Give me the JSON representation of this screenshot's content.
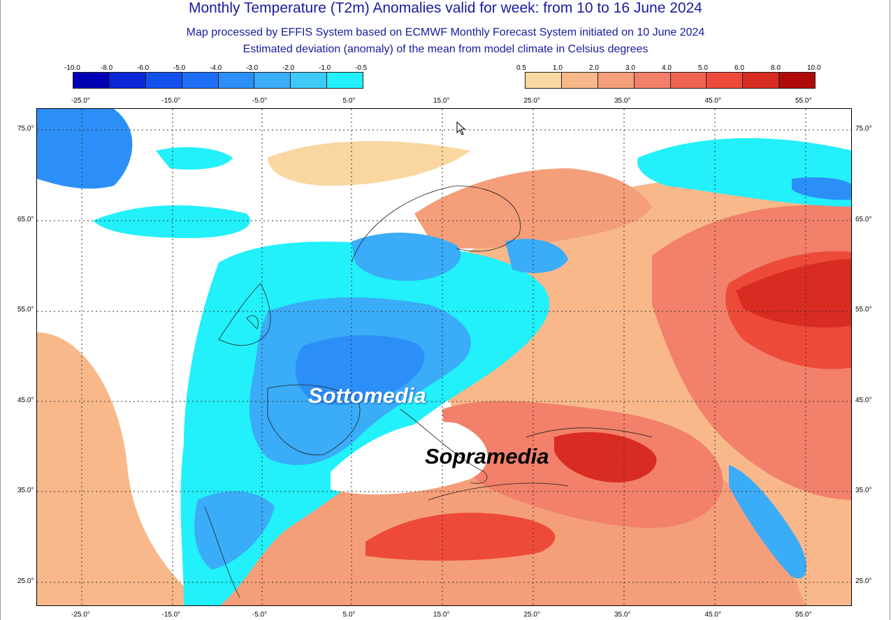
{
  "header": {
    "title": "Monthly Temperature (T2m) Anomalies valid for week: from 10 to 16 June 2024",
    "subtitle1": "Map processed by EFFIS System based on ECMWF Monthly Forecast System initiated on 10 June 2024",
    "subtitle2": "Estimated deviation (anomaly) of the mean from model climate in Celsius degrees"
  },
  "legend_cold": {
    "ticks": [
      "-10.0",
      "-8.0",
      "-6.0",
      "-5.0",
      "-4.0",
      "-3.0",
      "-2.0",
      "-1.0",
      "-0.5"
    ],
    "colors": [
      "#0000b4",
      "#0a28d6",
      "#1450ee",
      "#1e6ff6",
      "#2c8ff8",
      "#3aacf8",
      "#3ccaf6",
      "#22f0fa"
    ]
  },
  "legend_warm": {
    "ticks": [
      "0.5",
      "1.0",
      "2.0",
      "3.0",
      "4.0",
      "5.0",
      "6.0",
      "8.0",
      "10.0"
    ],
    "colors": [
      "#fad7a0",
      "#f8b88a",
      "#f59e7a",
      "#f2806a",
      "#f06350",
      "#ed4a3a",
      "#d82c22",
      "#b00a0a"
    ]
  },
  "axes": {
    "top_lon": [
      "-25.0°",
      "-15.0°",
      "-5.0°",
      "5.0°",
      "15.0°",
      "25.0°",
      "35.0°",
      "45.0°",
      "55.0°"
    ],
    "bottom_lon": [
      "-25.0°",
      "-15.0°",
      "-5.0°",
      "5.0°",
      "15.0°",
      "25.0°",
      "35.0°",
      "45.0°",
      "55.0°"
    ],
    "lat": [
      "75.0°",
      "65.0°",
      "55.0°",
      "45.0°",
      "35.0°",
      "25.0°"
    ]
  },
  "overlays": {
    "below_average": "Sottomedia",
    "above_average": "Sopramedia"
  },
  "map_colors": {
    "sea_neutral": "#ffffff",
    "cold_light": "#22f0fa",
    "cold_mid": "#3aacf8",
    "cold_strong": "#2c8ff8",
    "warm_light": "#fad7a0",
    "warm_mid": "#f59e7a",
    "warm_strong": "#ed4a3a",
    "warm_max": "#d82c22"
  }
}
